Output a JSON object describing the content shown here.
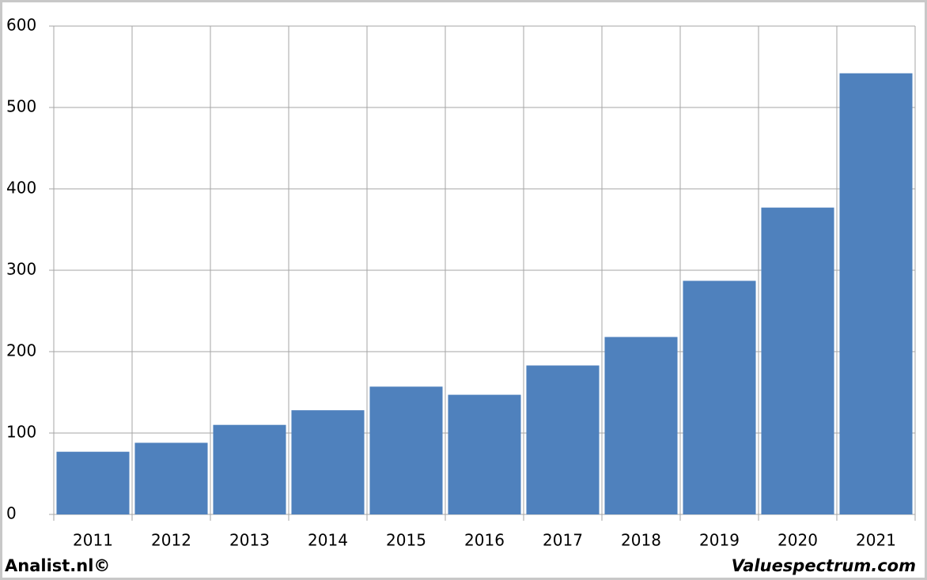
{
  "chart_data": {
    "type": "bar",
    "categories": [
      "2011",
      "2012",
      "2013",
      "2014",
      "2015",
      "2016",
      "2017",
      "2018",
      "2019",
      "2020",
      "2021"
    ],
    "values": [
      77,
      88,
      110,
      128,
      157,
      147,
      183,
      218,
      287,
      377,
      542
    ],
    "color": "#4f81bd",
    "ylim": [
      0,
      600
    ],
    "yticks": [
      0,
      100,
      200,
      300,
      400,
      500,
      600
    ],
    "grid": true
  },
  "footer": {
    "left": "Analist.nl©",
    "right": "Valuespectrum.com"
  }
}
